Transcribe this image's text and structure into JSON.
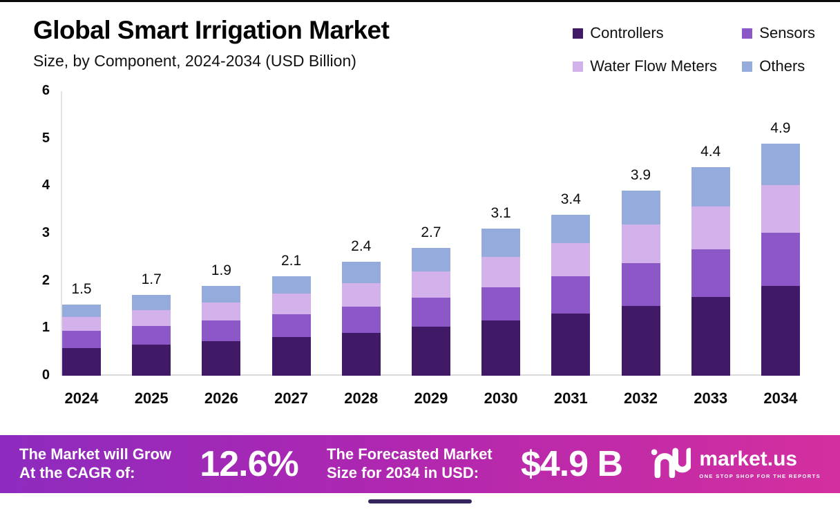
{
  "header": {
    "title": "Global Smart Irrigation Market",
    "subtitle": "Size, by Component, 2024-2034 (USD Billion)"
  },
  "legend": [
    {
      "label": "Controllers",
      "color": "#401a66"
    },
    {
      "label": "Sensors",
      "color": "#8c57c6"
    },
    {
      "label": "Water Flow Meters",
      "color": "#d3b1ea"
    },
    {
      "label": "Others",
      "color": "#95abdb"
    }
  ],
  "chart_data": {
    "type": "bar",
    "stacked": true,
    "title": "Global Smart Irrigation Market Size, by Component, 2024-2034 (USD Billion)",
    "xlabel": "",
    "ylabel": "",
    "ylim": [
      0,
      6
    ],
    "yticks": [
      0,
      1,
      2,
      3,
      4,
      5,
      6
    ],
    "grid": false,
    "legend_position": "top-right",
    "categories": [
      "2024",
      "2025",
      "2026",
      "2027",
      "2028",
      "2029",
      "2030",
      "2031",
      "2032",
      "2033",
      "2034"
    ],
    "series": [
      {
        "name": "Controllers",
        "values": [
          0.58,
          0.65,
          0.73,
          0.81,
          0.91,
          1.03,
          1.16,
          1.31,
          1.47,
          1.66,
          1.9
        ]
      },
      {
        "name": "Sensors",
        "values": [
          0.36,
          0.4,
          0.44,
          0.49,
          0.55,
          0.62,
          0.71,
          0.79,
          0.9,
          1.01,
          1.12
        ]
      },
      {
        "name": "Water Flow Meters",
        "values": [
          0.3,
          0.33,
          0.37,
          0.43,
          0.49,
          0.55,
          0.64,
          0.7,
          0.82,
          0.9,
          1.0
        ]
      },
      {
        "name": "Others",
        "values": [
          0.26,
          0.32,
          0.36,
          0.37,
          0.45,
          0.5,
          0.59,
          0.6,
          0.71,
          0.83,
          0.88
        ]
      }
    ],
    "totals": [
      "1.5",
      "1.7",
      "1.9",
      "2.1",
      "2.4",
      "2.7",
      "3.1",
      "3.4",
      "3.9",
      "4.4",
      "4.9"
    ]
  },
  "banner": {
    "cagr_line1": "The Market will Grow",
    "cagr_line2": "At the CAGR of:",
    "cagr_value": "12.6%",
    "forecast_line1": "The Forecasted Market",
    "forecast_line2": "Size for 2034 in USD:",
    "forecast_value": "$4.9 B",
    "brand": {
      "name": "market.us",
      "tagline": "ONE STOP SHOP FOR THE REPORTS"
    }
  }
}
